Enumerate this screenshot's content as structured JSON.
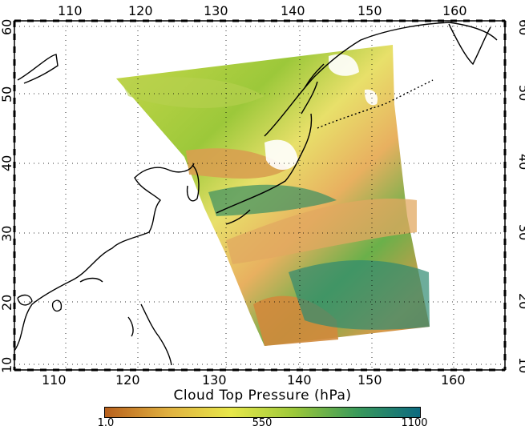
{
  "map": {
    "lon_ticks": [
      "110",
      "120",
      "130",
      "140",
      "150",
      "160"
    ],
    "lat_ticks": [
      "10",
      "20",
      "30",
      "40",
      "50",
      "60"
    ],
    "lon_range": [
      104,
      166
    ],
    "lat_range": [
      9,
      61
    ]
  },
  "colorbar": {
    "title": "Cloud Top Pressure (hPa)",
    "labels": [
      "1.0",
      "550",
      "1100"
    ],
    "colors": [
      "#b8601c",
      "#e0b040",
      "#e8e84a",
      "#9cc83a",
      "#3a9a5a",
      "#0c6a80"
    ]
  }
}
